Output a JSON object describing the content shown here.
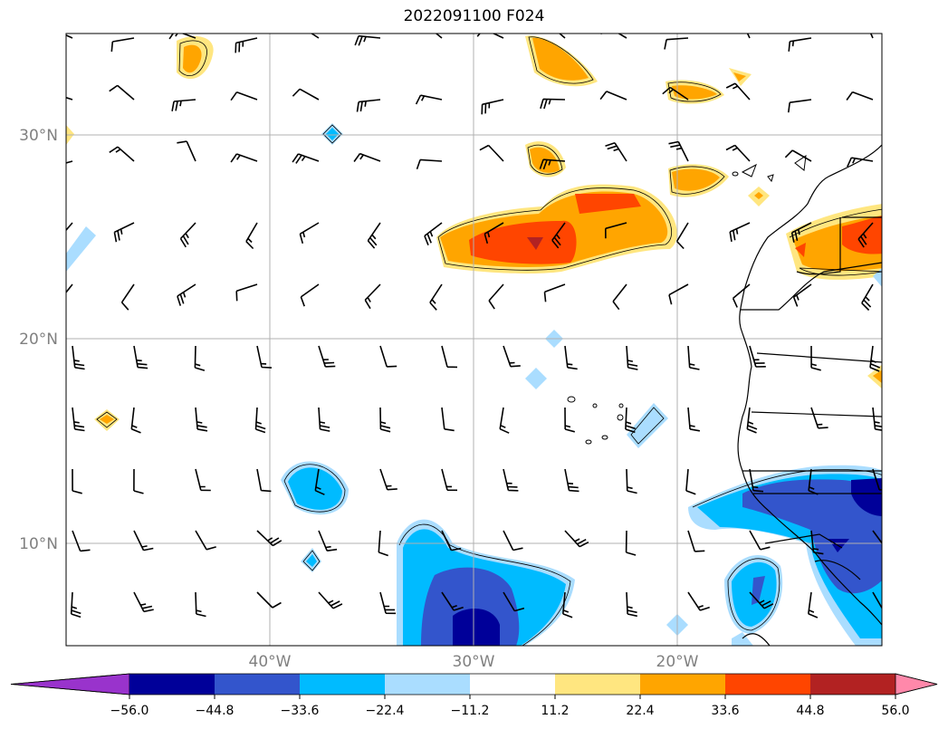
{
  "title": "2022091100 F024",
  "map": {
    "lon_range": [
      -50,
      -10
    ],
    "lat_range": [
      5,
      35
    ],
    "gridlines": true,
    "lon_labels": [
      "40°W",
      "30°W",
      "20°W"
    ],
    "lat_labels": [
      "30°N",
      "20°N",
      "10°N"
    ]
  },
  "colorbar": {
    "levels": [
      "−56.0",
      "−44.8",
      "−33.6",
      "−22.4",
      "−11.2",
      "11.2",
      "22.4",
      "33.6",
      "44.8",
      "56.0"
    ],
    "colors": [
      "#9933cc",
      "#000099",
      "#3355cc",
      "#00bbff",
      "#aaddff",
      "#ffffff",
      "#ffe680",
      "#ffa500",
      "#ff4500",
      "#b22222",
      "#ff88aa"
    ],
    "extend": "both"
  },
  "colors": {
    "grid": "#b0b0b0",
    "coast": "#000000",
    "barb": "#000000"
  }
}
